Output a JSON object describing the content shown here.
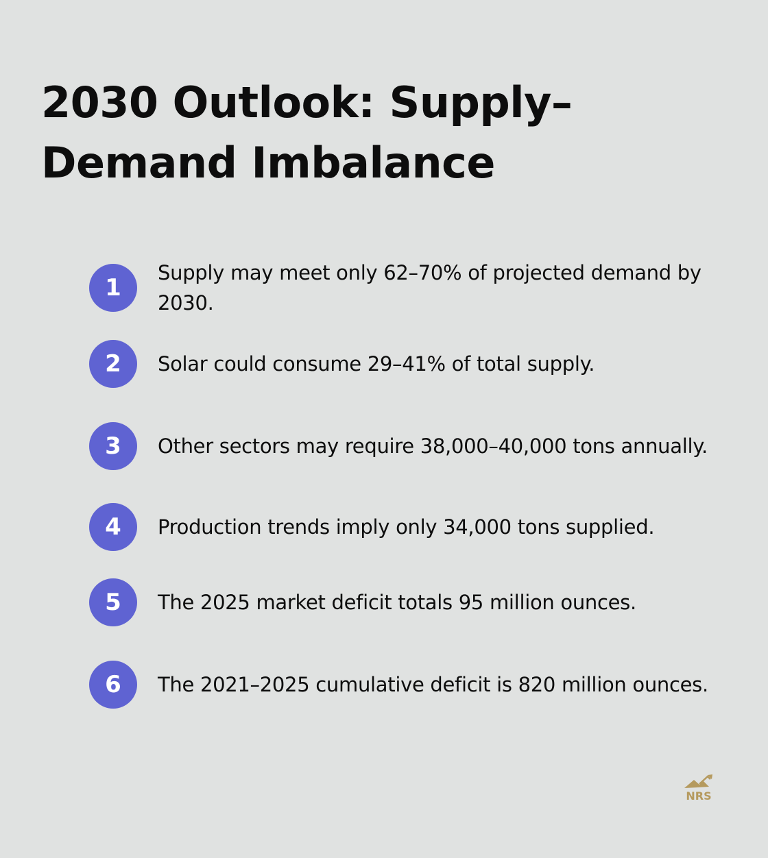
{
  "title": "2030 Outlook: Supply–Demand Imbalance",
  "accent_color": "#5f63d2",
  "items": [
    {
      "number": "1",
      "text": "Supply may meet only 62–70% of projected demand by 2030."
    },
    {
      "number": "2",
      "text": "Solar could consume 29–41% of total supply."
    },
    {
      "number": "3",
      "text": "Other sectors may require 38,000–40,000 tons annually."
    },
    {
      "number": "4",
      "text": "Production trends imply only 34,000 tons supplied."
    },
    {
      "number": "5",
      "text": "The 2025 market deficit totals 95 million ounces."
    },
    {
      "number": "6",
      "text": "The 2021–2025 cumulative deficit is 820 million ounces."
    }
  ],
  "logo": {
    "text": "NRS",
    "color": "#b59a5e"
  }
}
